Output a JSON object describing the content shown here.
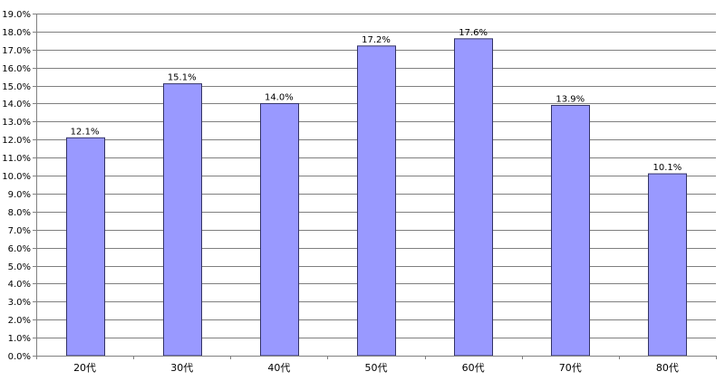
{
  "chart_data": {
    "type": "bar",
    "categories": [
      "20代",
      "30代",
      "40代",
      "50代",
      "60代",
      "70代",
      "80代"
    ],
    "values": [
      12.1,
      15.1,
      14.0,
      17.2,
      17.6,
      13.9,
      10.1
    ],
    "value_labels": [
      "12.1%",
      "15.1%",
      "14.0%",
      "17.2%",
      "17.6%",
      "13.9%",
      "10.1%"
    ],
    "y_ticks": [
      0,
      1,
      2,
      3,
      4,
      5,
      6,
      7,
      8,
      9,
      10,
      11,
      12,
      13,
      14,
      15,
      16,
      17,
      18,
      19
    ],
    "y_tick_labels": [
      "0.0%",
      "1.0%",
      "2.0%",
      "3.0%",
      "4.0%",
      "5.0%",
      "6.0%",
      "7.0%",
      "8.0%",
      "9.0%",
      "10.0%",
      "11.0%",
      "12.0%",
      "13.0%",
      "14.0%",
      "15.0%",
      "16.0%",
      "17.0%",
      "18.0%",
      "19.0%"
    ],
    "ylim": [
      0,
      19
    ],
    "title": "",
    "xlabel": "",
    "ylabel": "",
    "grid": true,
    "legend": "none",
    "colors": {
      "bar_fill": "#9999ff",
      "bar_stroke": "#333366",
      "grid": "#000000",
      "axis": "#808080"
    }
  }
}
